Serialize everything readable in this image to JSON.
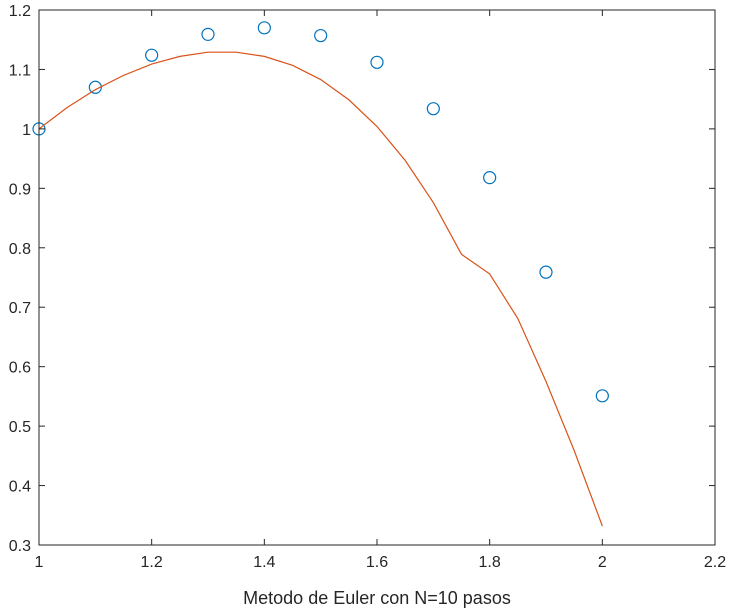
{
  "chart_data": {
    "type": "scatter",
    "title": "",
    "xlabel": "Metodo de Euler con N=10 pasos",
    "ylabel": "",
    "xlim": [
      1,
      2.2
    ],
    "ylim": [
      0.3,
      1.2
    ],
    "xticks": [
      1,
      1.2,
      1.4,
      1.6,
      1.8,
      2,
      2.2
    ],
    "xtick_labels": [
      "1",
      "1.2",
      "1.4",
      "1.6",
      "1.8",
      "2",
      "2.2"
    ],
    "yticks": [
      0.3,
      0.4,
      0.5,
      0.6,
      0.7,
      0.8,
      0.9,
      1,
      1.1,
      1.2
    ],
    "ytick_labels": [
      "0.3",
      "0.4",
      "0.5",
      "0.6",
      "0.7",
      "0.8",
      "0.9",
      "1",
      "1.1",
      "1.2"
    ],
    "grid": false,
    "box": true,
    "series": [
      {
        "kind": "markers",
        "marker": "circle",
        "color": "#0072BD",
        "x": [
          1,
          1.1,
          1.2,
          1.3,
          1.4,
          1.5,
          1.6,
          1.7,
          1.8,
          1.9,
          2
        ],
        "y": [
          1.0,
          1.07,
          1.124,
          1.159,
          1.17,
          1.157,
          1.112,
          1.034,
          0.918,
          0.759,
          0.551
        ]
      },
      {
        "kind": "line",
        "color": "#D95319",
        "x": [
          1,
          1.05,
          1.1,
          1.15,
          1.2,
          1.25,
          1.3,
          1.35,
          1.4,
          1.45,
          1.5,
          1.55,
          1.6,
          1.65,
          1.7,
          1.75,
          1.8,
          1.85,
          1.9,
          1.95,
          2
        ],
        "y": [
          1.0,
          1.036,
          1.066,
          1.09,
          1.109,
          1.122,
          1.129,
          1.129,
          1.122,
          1.107,
          1.083,
          1.049,
          1.004,
          0.947,
          0.876,
          0.789,
          0.756,
          0.681,
          0.575,
          0.459,
          0.332
        ]
      }
    ]
  }
}
